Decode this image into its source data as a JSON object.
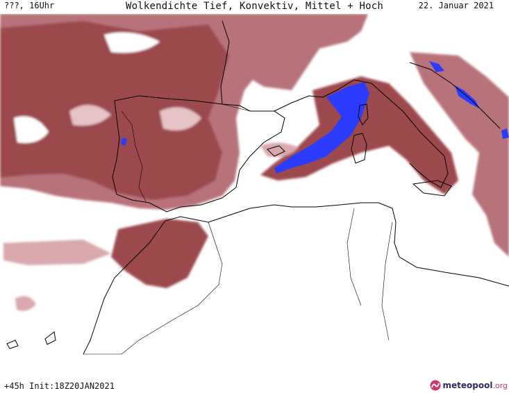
{
  "header": {
    "left": "???, 16Uhr",
    "title": "Wolkendichte  Tief, Konvektiv, Mittel + Hoch",
    "date": "22. Januar 2021"
  },
  "footer": {
    "run_info": "+45h Init:18Z20JAN2021",
    "brand_main": "meteopool",
    "brand_tld": ".org"
  },
  "colors": {
    "cloud_dense": "#9c4a4e",
    "cloud_medium": "#b8737a",
    "cloud_light": "#d9a9ad",
    "precip_blue": "#2b3cff",
    "coastline": "#000000",
    "background": "#ffffff",
    "brand_pink": "#d0346a"
  }
}
